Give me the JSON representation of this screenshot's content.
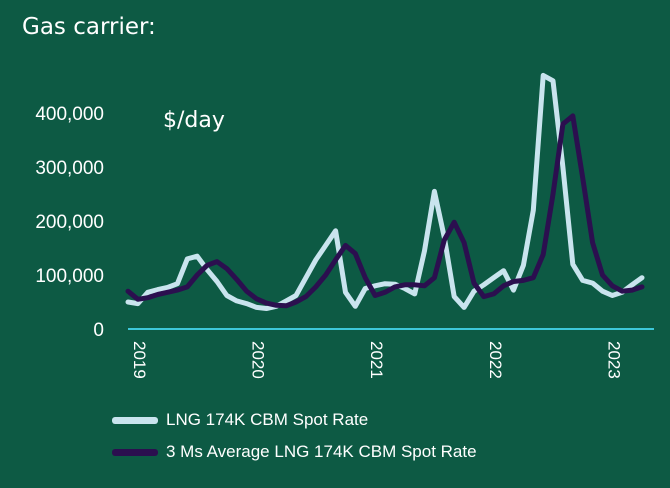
{
  "title": "Gas carrier:",
  "colors": {
    "background": "#0d5a44",
    "zero_line": "#3ec7d9",
    "spot": "#c9e4ee",
    "avg": "#2b0f4f",
    "text": "#ffffff"
  },
  "chart_data": {
    "type": "line",
    "unit_label": "$/day",
    "ylim": [
      0,
      480000
    ],
    "y_ticks": [
      {
        "value": 0,
        "label": "0"
      },
      {
        "value": 100000,
        "label": "100,000"
      },
      {
        "value": 200000,
        "label": "200,000"
      },
      {
        "value": 300000,
        "label": "300,000"
      },
      {
        "value": 400000,
        "label": "400,000"
      }
    ],
    "x_ticks": [
      "2019",
      "2020",
      "2021",
      "2022",
      "2023"
    ],
    "x_range": [
      "2019-01",
      "2023-05"
    ],
    "grid": false,
    "legend_position": "bottom",
    "x": [
      "2019-01",
      "2019-02",
      "2019-03",
      "2019-04",
      "2019-05",
      "2019-06",
      "2019-07",
      "2019-08",
      "2019-09",
      "2019-10",
      "2019-11",
      "2019-12",
      "2020-01",
      "2020-02",
      "2020-03",
      "2020-04",
      "2020-05",
      "2020-06",
      "2020-07",
      "2020-08",
      "2020-09",
      "2020-10",
      "2020-11",
      "2020-12",
      "2021-01",
      "2021-02",
      "2021-03",
      "2021-04",
      "2021-05",
      "2021-06",
      "2021-07",
      "2021-08",
      "2021-09",
      "2021-10",
      "2021-11",
      "2021-12",
      "2022-01",
      "2022-02",
      "2022-03",
      "2022-04",
      "2022-05",
      "2022-06",
      "2022-07",
      "2022-08",
      "2022-09",
      "2022-10",
      "2022-11",
      "2022-12",
      "2023-01",
      "2023-02",
      "2023-03",
      "2023-04",
      "2023-05"
    ],
    "series": [
      {
        "name": "LNG 174K CBM Spot Rate",
        "values": [
          50000,
          47000,
          68000,
          73000,
          77000,
          84000,
          130000,
          135000,
          110000,
          88000,
          62000,
          52000,
          47000,
          40000,
          38000,
          42000,
          52000,
          62000,
          95000,
          128000,
          155000,
          182000,
          68000,
          42000,
          75000,
          80000,
          84000,
          83000,
          75000,
          65000,
          145000,
          255000,
          170000,
          60000,
          40000,
          70000,
          82000,
          95000,
          108000,
          72000,
          118000,
          220000,
          470000,
          460000,
          300000,
          120000,
          90000,
          85000,
          70000,
          62000,
          68000,
          82000,
          95000
        ]
      },
      {
        "name": "3 Ms Average LNG 174K CBM Spot Rate",
        "values": [
          70000,
          55000,
          58000,
          64000,
          68000,
          72000,
          78000,
          100000,
          118000,
          125000,
          112000,
          92000,
          70000,
          56000,
          48000,
          44000,
          43000,
          50000,
          60000,
          78000,
          100000,
          128000,
          155000,
          140000,
          95000,
          62000,
          68000,
          78000,
          82000,
          82000,
          80000,
          95000,
          165000,
          198000,
          160000,
          85000,
          60000,
          65000,
          80000,
          88000,
          90000,
          95000,
          138000,
          250000,
          380000,
          395000,
          280000,
          160000,
          100000,
          80000,
          70000,
          72000,
          78000
        ]
      }
    ]
  }
}
